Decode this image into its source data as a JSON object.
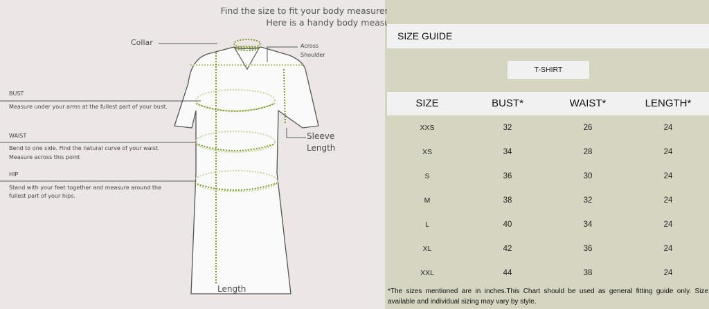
{
  "guide": {
    "heading_line1": "Find the size to fit your body measurements in the chart above.",
    "heading_line2": "Here is a handy body measurement guide:",
    "collar": "Collar",
    "across_shoulder_1": "Across",
    "across_shoulder_2": "Shoulder",
    "sleeve_1": "Sleeve",
    "sleeve_2": "Length",
    "length": "Length",
    "bust_label": "BUST",
    "bust_desc": "Measure under your arms at the fullest part of your bust.",
    "waist_label": "WAIST",
    "waist_desc_1": "Bend to one side. Find the natural curve of your waist.",
    "waist_desc_2": "Measure across this point",
    "hip_label": "HIP",
    "hip_desc_1": "Stand with your feet together and measure around the",
    "hip_desc_2": "fullest part of your hips.",
    "colors": {
      "background": "#ede6e6",
      "measure_lines": "#7a9a2a"
    }
  },
  "size_guide": {
    "title": "SIZE GUIDE",
    "tab": "T-SHIRT",
    "columns": [
      "SIZE",
      "BUST*",
      "WAIST*",
      "LENGTH*"
    ],
    "rows": [
      [
        "XXS",
        "32",
        "26",
        "24"
      ],
      [
        "XS",
        "34",
        "28",
        "24"
      ],
      [
        "S",
        "36",
        "30",
        "24"
      ],
      [
        "M",
        "38",
        "32",
        "24"
      ],
      [
        "L",
        "40",
        "34",
        "24"
      ],
      [
        "XL",
        "42",
        "36",
        "24"
      ],
      [
        "XXL",
        "44",
        "38",
        "24"
      ]
    ],
    "footnote": "*The sizes mentioned are in inches.This Chart should be used as general fitting guide only. Size available and individual sizing may vary by style.",
    "colors": {
      "background": "#d6d5c1",
      "band": "#f1f1f1"
    }
  }
}
